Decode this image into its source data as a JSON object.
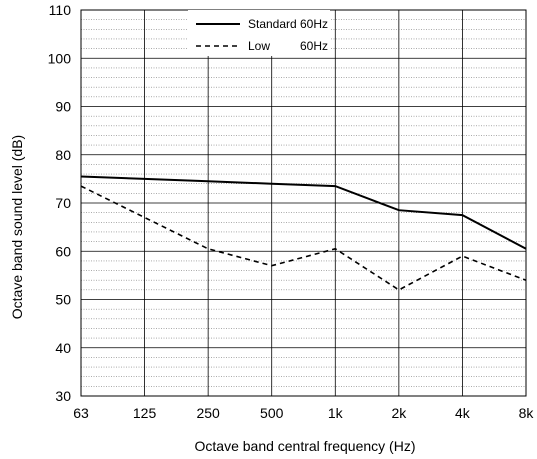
{
  "chart_data": {
    "type": "line",
    "title": "",
    "xlabel": "Octave band central frequency (Hz)",
    "ylabel": "Octave band sound level (dB)",
    "categories": [
      "63",
      "125",
      "250",
      "500",
      "1k",
      "2k",
      "4k",
      "8k"
    ],
    "ylim": [
      30,
      110
    ],
    "yticks": [
      "30",
      "40",
      "50",
      "60",
      "70",
      "80",
      "90",
      "100",
      "110"
    ],
    "grid": true,
    "minor_grid_step": 2,
    "legend_position": "top-center",
    "series": [
      {
        "name": "Standard",
        "suffix": "60Hz",
        "style": "solid",
        "color": "#000000",
        "values": [
          75.5,
          75,
          74.5,
          74,
          73.5,
          68.5,
          67.5,
          60.5
        ]
      },
      {
        "name": "Low",
        "suffix": "60Hz",
        "style": "dashed",
        "color": "#000000",
        "values": [
          73.5,
          67,
          60.5,
          57,
          60.5,
          52,
          59,
          54
        ]
      }
    ]
  }
}
